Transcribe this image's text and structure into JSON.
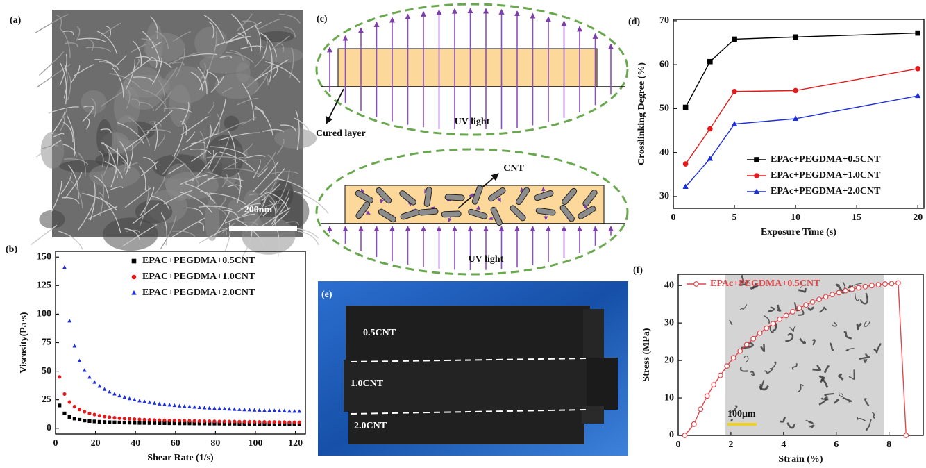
{
  "panels": {
    "a": {
      "label": "(a)",
      "scale_bar": "200nm"
    },
    "c": {
      "label": "(c)",
      "cured_layer": "Cured layer",
      "uv_light_top": "UV light",
      "cnt": "CNT",
      "uv_light_bottom": "UV light"
    },
    "e": {
      "label": "(e)",
      "samples": [
        "0.5CNT",
        "1.0CNT",
        "2.0CNT"
      ]
    }
  },
  "chart_data": [
    {
      "type": "scatter",
      "panel_label": "(b)",
      "x_label": "Shear Rate (1/s)",
      "y_label": "Viscosity(Pa·s)",
      "xlim": [
        0,
        125
      ],
      "ylim": [
        -5,
        155
      ],
      "xticks": [
        0,
        20,
        40,
        60,
        80,
        100,
        120
      ],
      "yticks": [
        0,
        25,
        50,
        75,
        100,
        125,
        150
      ],
      "legend": "upper right",
      "x": [
        2,
        4.5,
        7,
        9.5,
        12,
        14.5,
        17,
        19.5,
        22,
        24.5,
        27,
        29.5,
        32,
        34.5,
        37,
        39.5,
        42,
        44.5,
        47,
        49.5,
        52,
        54.5,
        57,
        59.5,
        62,
        64.5,
        67,
        69.5,
        72,
        74.5,
        77,
        79.5,
        82,
        84.5,
        87,
        89.5,
        92,
        94.5,
        97,
        99.5,
        102,
        104.5,
        107,
        109.5,
        112,
        114.5,
        117,
        119.5,
        122
      ],
      "series": [
        {
          "name": "EPAC+PEGDMA+0.5CNT",
          "color": "#000000",
          "marker": "square",
          "values": [
            20,
            13,
            10,
            8.5,
            7.5,
            6.8,
            6.3,
            6,
            5.7,
            5.5,
            5.3,
            5.2,
            5.1,
            5,
            4.9,
            4.8,
            4.7,
            4.7,
            4.6,
            4.6,
            4.5,
            4.5,
            4.4,
            4.4,
            4.3,
            4.3,
            4.3,
            4.2,
            4.2,
            4.2,
            4.1,
            4.1,
            4.1,
            4,
            4,
            4,
            3.9,
            3.9,
            3.9,
            3.9,
            3.8,
            3.8,
            3.8,
            3.8,
            3.7,
            3.7,
            3.7,
            3.7,
            3.6
          ]
        },
        {
          "name": "EPAC+PEGDMA+1.0CNT",
          "color": "#e31a1c",
          "marker": "circle",
          "values": [
            45,
            30,
            23,
            19,
            16.5,
            14.5,
            13,
            12,
            11,
            10.3,
            9.7,
            9.2,
            8.8,
            8.5,
            8.2,
            8,
            7.8,
            7.6,
            7.4,
            7.2,
            7.1,
            7,
            6.9,
            6.8,
            6.7,
            6.6,
            6.5,
            6.4,
            6.3,
            6.2,
            6.2,
            6.1,
            6,
            6,
            5.9,
            5.9,
            5.8,
            5.8,
            5.7,
            5.7,
            5.6,
            5.6,
            5.5,
            5.5,
            5.4,
            5.4,
            5.3,
            5.3,
            5.2
          ]
        },
        {
          "name": "EPAC+PEGDMA+2.0CNT",
          "color": "#1f2fd6",
          "marker": "triangle",
          "values": [
            null,
            141,
            94,
            72,
            59,
            50.7,
            44.7,
            40.3,
            36.8,
            34.1,
            31.9,
            30,
            28.4,
            27.1,
            25.9,
            24.9,
            24,
            23.3,
            22.6,
            21.9,
            21.3,
            20.8,
            20.4,
            19.9,
            19.5,
            19.1,
            18.8,
            18.5,
            18.2,
            17.9,
            17.7,
            17.4,
            17.2,
            17,
            16.8,
            16.6,
            16.4,
            16.2,
            16.1,
            15.9,
            15.8,
            15.6,
            15.5,
            15.4,
            15.3,
            15.2,
            15,
            14.9,
            14.8
          ]
        }
      ]
    },
    {
      "type": "line",
      "panel_label": "(d)",
      "x_label": "Exposure Time (s)",
      "y_label": "Crosslinking Degree (%)",
      "xlim": [
        0,
        20.5
      ],
      "ylim": [
        27.3,
        70.3
      ],
      "xticks": [
        0,
        5,
        10,
        15,
        20
      ],
      "yticks": [
        30,
        40,
        50,
        60,
        70
      ],
      "legend": "lower right",
      "x": [
        1,
        3,
        5,
        10,
        20
      ],
      "series": [
        {
          "name": "EPAc+PEGDMA+0.5CNT",
          "color": "#000000",
          "marker": "square",
          "values": [
            50.3,
            60.7,
            65.8,
            66.3,
            67.2
          ]
        },
        {
          "name": "EPAc+PEGDMA+1.0CNT",
          "color": "#e31a1c",
          "marker": "circle",
          "values": [
            37.4,
            45.4,
            53.9,
            54.1,
            59.1
          ]
        },
        {
          "name": "EPAc+PEGDMA+2.0CNT",
          "color": "#1f2fd6",
          "marker": "triangle",
          "values": [
            32.2,
            38.6,
            46.5,
            47.7,
            52.9
          ]
        }
      ]
    },
    {
      "type": "line",
      "panel_label": "(f)",
      "x_label": "Strain (%)",
      "y_label": "Stress (MPa)",
      "inset_scale_bar": "100μm",
      "xlim": [
        0,
        9.3
      ],
      "ylim": [
        0,
        43
      ],
      "xticks": [
        0,
        2,
        4,
        6,
        8
      ],
      "yticks": [
        0,
        10,
        20,
        30,
        40
      ],
      "legend": "upper left",
      "x": [
        0.25,
        0.6,
        0.85,
        1.1,
        1.35,
        1.6,
        1.85,
        2.1,
        2.35,
        2.6,
        2.85,
        3.1,
        3.35,
        3.6,
        3.85,
        4.1,
        4.35,
        4.6,
        4.85,
        5.1,
        5.35,
        5.6,
        5.85,
        6.1,
        6.35,
        6.6,
        6.85,
        7.1,
        7.35,
        7.6,
        7.85,
        8.1,
        8.35,
        8.65
      ],
      "series": [
        {
          "name": "EPAc+PEGDMA+0.5CNT",
          "color": "#e0474c",
          "marker": "open-circle",
          "values": [
            0,
            3,
            7,
            10.5,
            13.5,
            16,
            18.5,
            20.7,
            22.5,
            24.2,
            25.8,
            27.3,
            28.6,
            29.8,
            31,
            32,
            33,
            34,
            34.8,
            35.6,
            36.3,
            37,
            37.6,
            38.1,
            38.6,
            39,
            39.4,
            39.7,
            40,
            40.2,
            40.4,
            40.5,
            40.7,
            0
          ]
        }
      ]
    }
  ]
}
